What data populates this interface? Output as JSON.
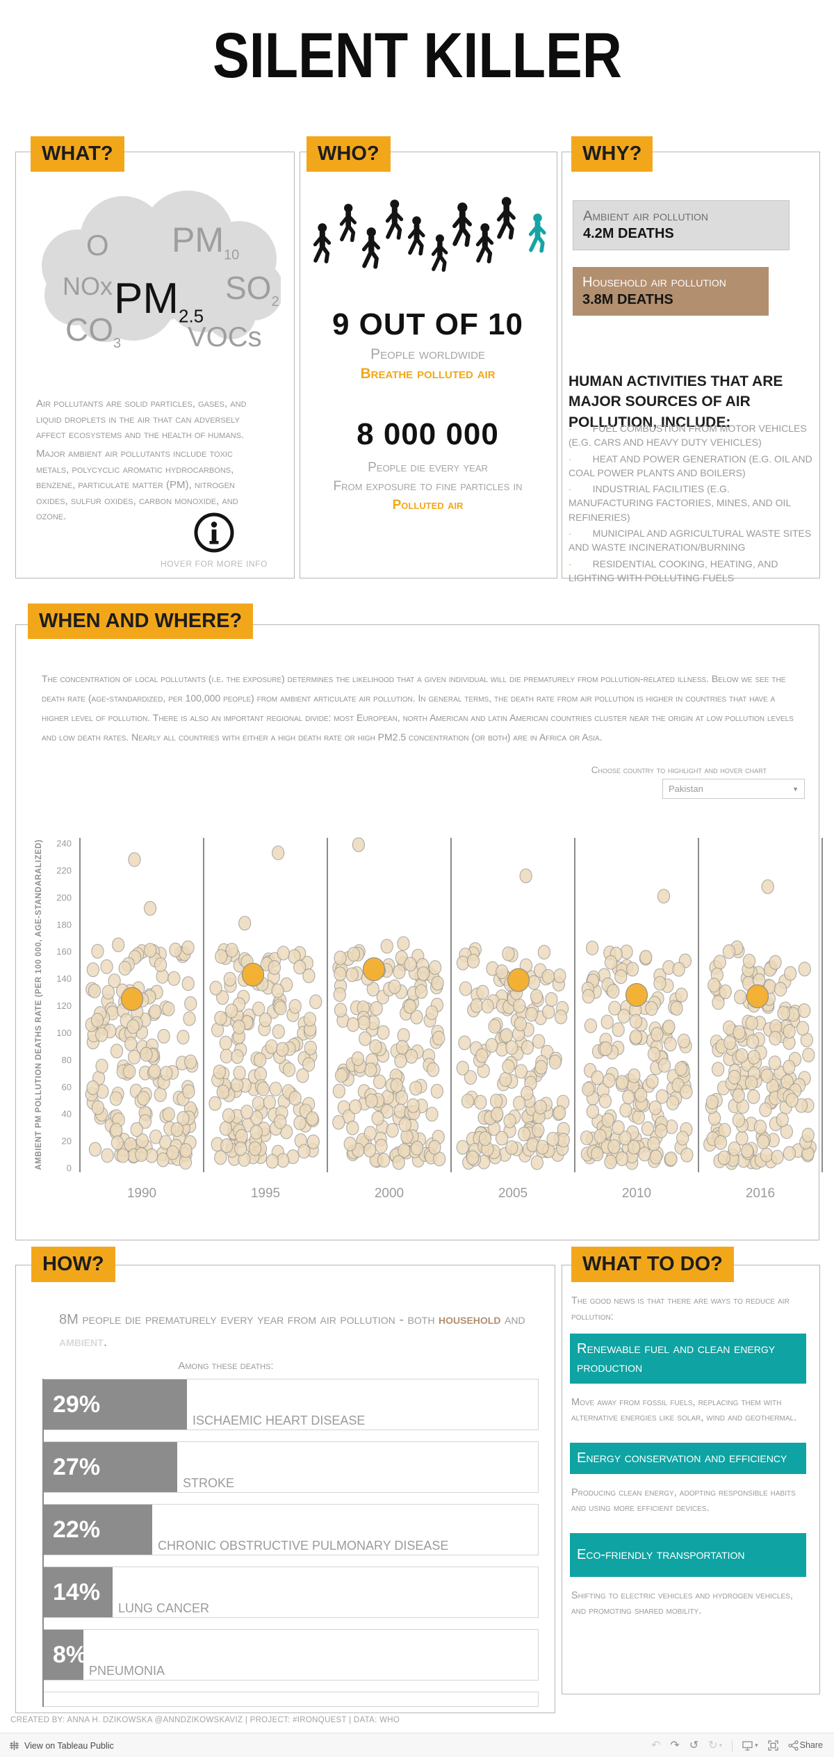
{
  "page": {
    "title": "SILENT KILLER"
  },
  "colors": {
    "accent_orange": "#F2A71B",
    "teal": "#0FA3A3",
    "tan": "#B28F6F",
    "bar_gray": "#8C8C8C",
    "dot_fill": "#ECD9BB",
    "dot_highlight": "#F3B02F"
  },
  "what": {
    "header": "WHAT?",
    "cloud_pollutants": [
      {
        "text": "O",
        "sub": "",
        "emphasis": false
      },
      {
        "text": "PM",
        "sub": "10",
        "emphasis": false
      },
      {
        "text": "NOx",
        "sub": "",
        "emphasis": false
      },
      {
        "text": "PM",
        "sub": "2.5",
        "emphasis": true
      },
      {
        "text": "SO",
        "sub": "2",
        "emphasis": false
      },
      {
        "text": "CO",
        "sub": "3",
        "emphasis": false
      },
      {
        "text": "VOCs",
        "sub": "",
        "emphasis": false
      }
    ],
    "p1": "Air pollutants are solid particles, gases, and liquid droplets in the air that can adversely affect ecosystems and the health of humans.",
    "p2": "Major ambient air pollutants include toxic metals, polycyclic aromatic hydrocarbons, benzene, particulate matter (PM), nitrogen oxides, sulfur oxides, carbon monoxide, and ozone.",
    "hover_note": "HOVER FOR MORE INFO"
  },
  "who": {
    "header": "WHO?",
    "people_total": 10,
    "people_highlighted": 1,
    "stat1_value": "9 OUT OF 10",
    "stat1_line1": "People worldwide",
    "stat1_line2": "Breathe polluted air",
    "stat2_value": "8 000 000",
    "stat2_line1": "People die every year",
    "stat2_line2": "From exposure to fine particles in",
    "stat2_line3": "Polluted air"
  },
  "why": {
    "header": "WHY?",
    "boxes": [
      {
        "label": "Ambient air pollution",
        "value": "4.2M DEATHS"
      },
      {
        "label": "Household air pollution",
        "value": "3.8M DEATHS"
      }
    ],
    "activities_heading": "HUMAN ACTIVITIES THAT ARE MAJOR SOURCES OF AIR POLLUTION, INCLUDE:",
    "activities": [
      "FUEL COMBUSTION FROM MOTOR VEHICLES (E.G. CARS AND HEAVY DUTY VEHICLES)",
      "HEAT AND POWER GENERATION (E.G. OIL AND COAL POWER PLANTS AND BOILERS)",
      "INDUSTRIAL FACILITIES (E.G. MANUFACTURING FACTORIES, MINES, AND OIL REFINERIES)",
      "MUNICIPAL AND AGRICULTURAL WASTE SITES AND WASTE INCINERATION/BURNING",
      "RESIDENTIAL COOKING, HEATING, AND LIGHTING WITH POLLUTING FUELS"
    ]
  },
  "when_where": {
    "header": "WHEN AND WHERE?",
    "paragraph": "The concentration of local pollutants (i.e. the exposure) determines the likelihood that a given individual will die prematurely from pollution-related illness. Below we see the death rate (age-standardized, per 100,000 people) from ambient articulate air pollution.  In general terms, the death rate from air pollution is higher in countries that have a higher level of pollution. There is also an important regional divide: most European, north American and latin American countries cluster near the origin at low pollution levels and low death rates. Nearly all countries with either a high death rate or high PM2.5 concentration (or both) are in Africa or Asia.",
    "dropdown_label": "Choose country to highlight and hover chart",
    "dropdown_value": "Pakistan"
  },
  "how": {
    "header": "HOW?",
    "intro_prefix": "8M people die prematurely every year from air pollution - both ",
    "intro_household": "household",
    "intro_and": " and ",
    "intro_ambient": "ambient",
    "intro_period": ".",
    "among_label": "Among these deaths:"
  },
  "what_to_do": {
    "header": "WHAT TO DO?",
    "intro": "The good news is that there are ways to reduce air pollution:",
    "actions": [
      {
        "title": "Renewable fuel and clean energy production",
        "desc": "Move away from fossil fuels, replacing them with alternative energies like solar, wind and geothermal."
      },
      {
        "title": "Energy conservation and efficiency",
        "desc": "Producing clean energy, adopting responsible habits and using more efficient devices."
      },
      {
        "title": "Eco-friendly transportation",
        "desc": "Shifting to electric vehicles and hydrogen vehicles, and promoting shared mobility."
      }
    ]
  },
  "credit": "CREATED BY: ANNA H. DZIKOWSKA @ANNDZIKOWSKAVIZ | PROJECT: #IRONQUEST | DATA: WHO",
  "tableau_bar": {
    "view_label": "View on Tableau Public",
    "share_label": "Share"
  },
  "chart_data": [
    {
      "type": "scatter",
      "title": "",
      "xlabel": "",
      "ylabel": "AMBIENT PM POLLUTION DEATHS RATE (PER 100 000, AGE-STANDARALIZED)",
      "ylim": [
        0,
        240
      ],
      "ytick_step": 20,
      "grid": false,
      "legend": false,
      "categories": [
        "1990",
        "1995",
        "2000",
        "2005",
        "2010",
        "2016"
      ],
      "series": [
        {
          "name": "Pakistan (highlighted)",
          "values": [
            125,
            143,
            147,
            139,
            128,
            127
          ]
        },
        {
          "name": "All countries (background, jittered)",
          "points_per_year": 160,
          "value_range": [
            4,
            163
          ],
          "top_outliers": {
            "1990": [
              228,
              192,
              165,
              161
            ],
            "1995": [
              233,
              181
            ],
            "2000": [
              239,
              166,
              164
            ],
            "2005": [
              216,
              153
            ],
            "2010": [
              201,
              147
            ],
            "2016": [
              208,
              160,
              153
            ]
          }
        }
      ]
    },
    {
      "type": "bar",
      "orientation": "horizontal",
      "title": "Among these deaths:",
      "categories": [
        "ISCHAEMIC HEART DISEASE",
        "STROKE",
        "CHRONIC OBSTRUCTIVE PULMONARY DISEASE",
        "LUNG CANCER",
        "PNEUMONIA"
      ],
      "values": [
        29,
        27,
        22,
        14,
        8
      ],
      "value_labels": [
        "29%",
        "27%",
        "22%",
        "14%",
        "8%"
      ],
      "xlim": [
        0,
        100
      ]
    }
  ]
}
